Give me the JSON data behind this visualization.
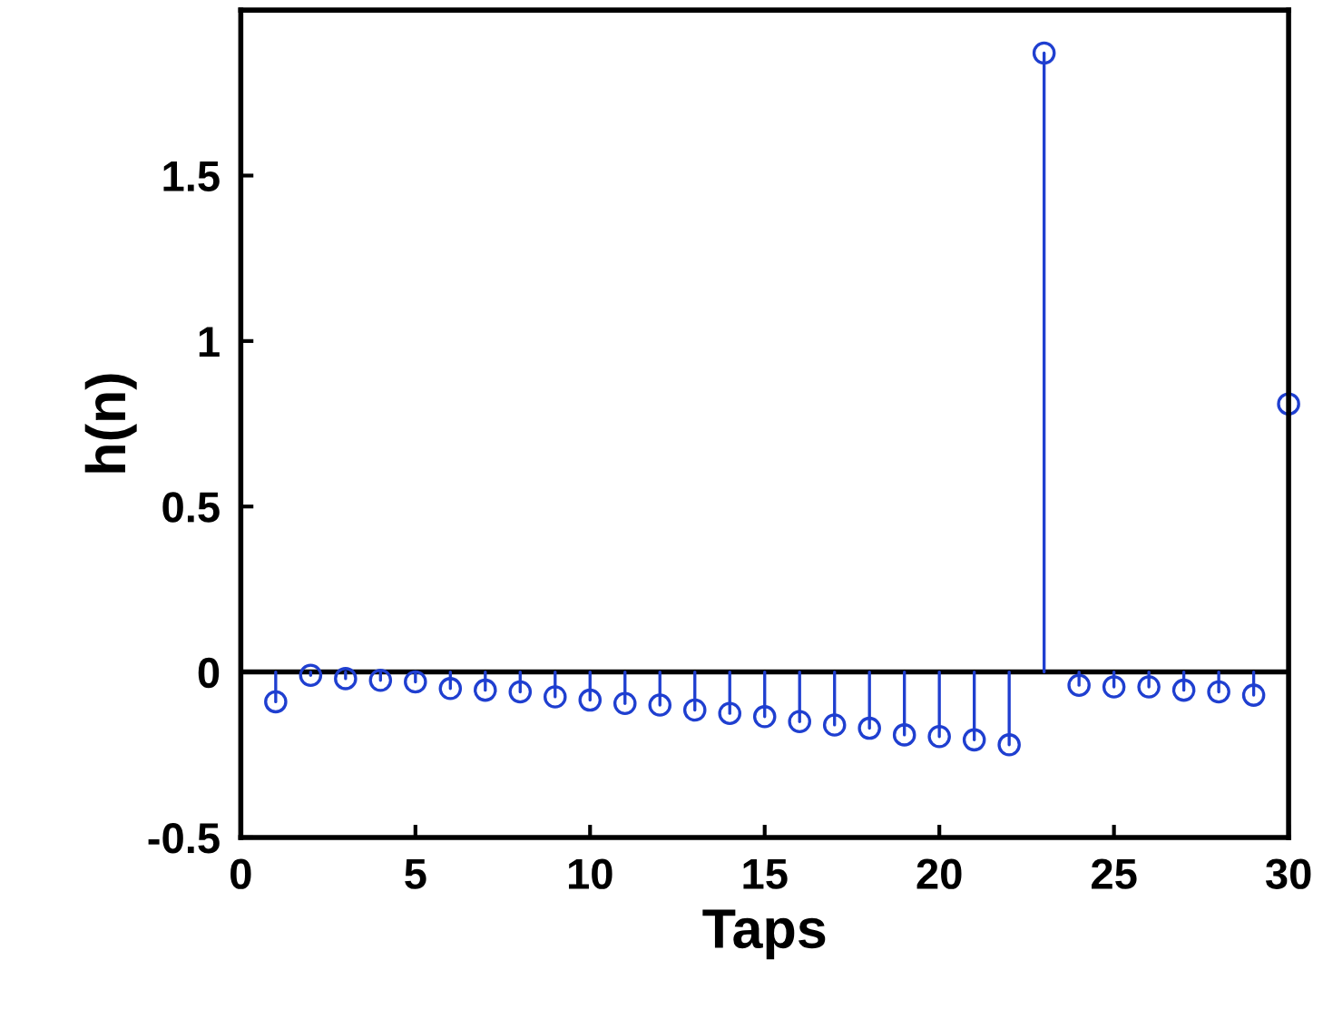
{
  "chart_data": {
    "type": "lollipop",
    "xlabel": "Taps",
    "ylabel": "h(n)",
    "x": [
      1,
      2,
      3,
      4,
      5,
      6,
      7,
      8,
      9,
      10,
      11,
      12,
      13,
      14,
      15,
      16,
      17,
      18,
      19,
      20,
      21,
      22,
      23,
      24,
      25,
      26,
      27,
      28,
      29,
      30
    ],
    "series": [
      {
        "color": "#1f3fd0",
        "values": [
          -0.09,
          -0.01,
          -0.02,
          -0.025,
          -0.03,
          -0.05,
          -0.055,
          -0.06,
          -0.075,
          -0.085,
          -0.095,
          -0.1,
          -0.115,
          -0.125,
          -0.135,
          -0.15,
          -0.16,
          -0.17,
          -0.19,
          -0.195,
          -0.205,
          -0.22,
          1.87,
          -0.04,
          -0.045,
          -0.045,
          -0.055,
          -0.06,
          -0.07,
          0.81
        ]
      }
    ],
    "xlim": [
      0,
      30
    ],
    "ylim": [
      -0.5,
      2
    ],
    "xticks": [
      0,
      5,
      10,
      15,
      20,
      25,
      30
    ],
    "yticks": [
      -0.5,
      0,
      0.5,
      1,
      1.5
    ],
    "marker": "circle",
    "grid": false,
    "ref_lines": [
      {
        "axis": "y",
        "value": 0,
        "color": "#000000"
      }
    ]
  }
}
